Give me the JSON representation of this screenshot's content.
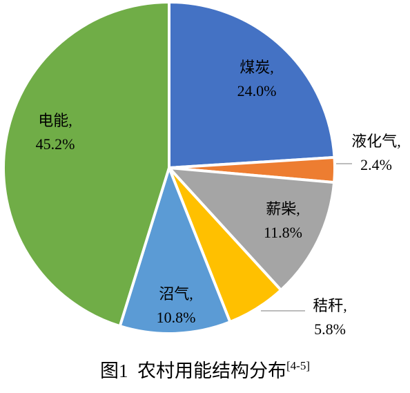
{
  "chart_data": {
    "type": "pie",
    "title": "图1  农村用能结构分布",
    "title_ref": "[4-5]",
    "categories": [
      "煤炭,",
      "液化气,",
      "薪柴,",
      "秸秆,",
      "沼气,",
      "电能,"
    ],
    "values": [
      24.0,
      2.4,
      11.8,
      5.8,
      10.8,
      45.2
    ],
    "value_labels": [
      "24.0%",
      "2.4%",
      "11.8%",
      "5.8%",
      "10.8%",
      "45.2%"
    ],
    "colors": [
      "#4472c4",
      "#ed7d31",
      "#a5a5a5",
      "#ffc000",
      "#5b9bd5",
      "#70ad47"
    ]
  }
}
